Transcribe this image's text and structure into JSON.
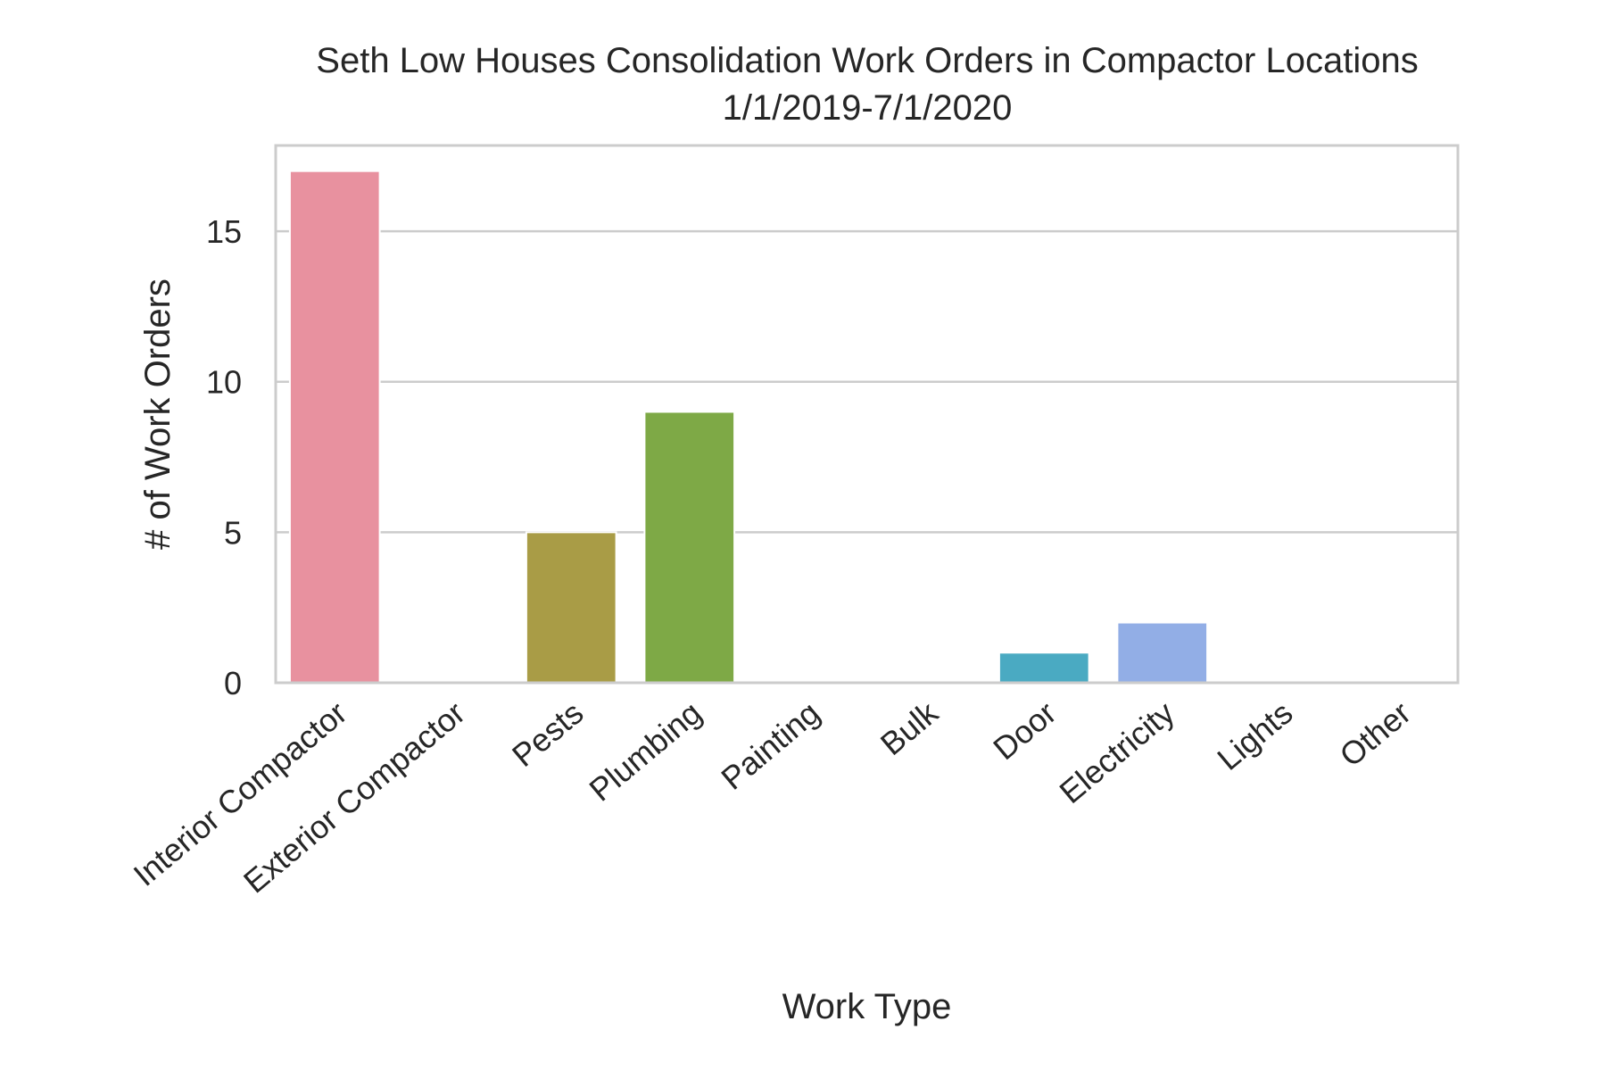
{
  "chart_data": {
    "type": "bar",
    "title": "Seth Low Houses Consolidation Work Orders in Compactor Locations",
    "subtitle": "1/1/2019-7/1/2020",
    "xlabel": "Work Type",
    "ylabel": "# of Work Orders",
    "categories": [
      "Interior Compactor",
      "Exterior Compactor",
      "Pests",
      "Plumbing",
      "Painting",
      "Bulk",
      "Door",
      "Electricity",
      "Lights",
      "Other"
    ],
    "values": [
      17,
      0,
      5,
      9,
      0,
      0,
      1,
      2,
      0,
      0
    ],
    "colors": [
      "#e8919f",
      "#d99a5a",
      "#a99c46",
      "#7ea946",
      "#4bb57f",
      "#4cb3a3",
      "#4aaac2",
      "#92aee6",
      "#c39ee8",
      "#e690d5"
    ],
    "ylim": [
      0,
      17.85
    ],
    "yticks": [
      0,
      5,
      10,
      15
    ],
    "grid": "horizontal",
    "legend": "none"
  }
}
